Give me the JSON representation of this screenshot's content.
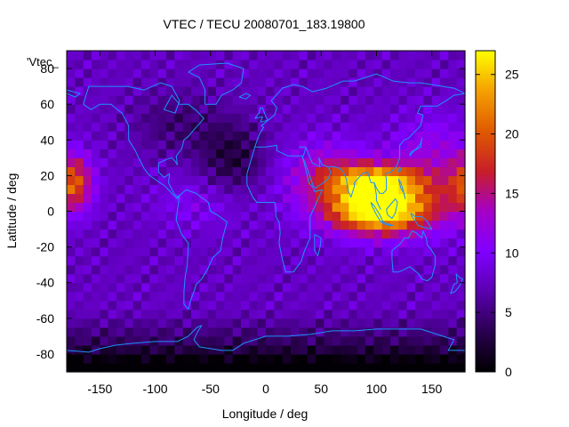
{
  "chart_data": {
    "type": "heatmap",
    "title": "VTEC / TECU 20080701_183.19800",
    "xlabel": "Longitude / deg",
    "ylabel": "Latitude / deg",
    "legend_label": "'Vtec_",
    "xlim": [
      -180,
      180
    ],
    "ylim": [
      -90,
      90
    ],
    "x_ticks": [
      -150,
      -100,
      -50,
      0,
      50,
      100,
      150
    ],
    "y_ticks": [
      -80,
      -60,
      -40,
      -20,
      0,
      20,
      40,
      60,
      80
    ],
    "colorbar": {
      "range": [
        0,
        27
      ],
      "ticks": [
        0,
        5,
        10,
        15,
        20,
        25
      ],
      "colors": [
        "#000000",
        "#2a0050",
        "#5a00b0",
        "#8000ff",
        "#a500c8",
        "#c81e28",
        "#e05a00",
        "#f5a000",
        "#ffff00"
      ]
    },
    "grid": {
      "lon_step": 7.5,
      "lat_step": 5
    },
    "background_level": 8,
    "features": [
      {
        "name": "equatorial-anomaly-asia",
        "lon": 100,
        "lat": 0,
        "peak": 26
      },
      {
        "name": "northern-crest-asia",
        "lon": 95,
        "lat": 20,
        "peak": 21
      },
      {
        "name": "western-pacific-crest",
        "lon": -170,
        "lat": 18,
        "peak": 19
      },
      {
        "name": "southern-low",
        "lon": 0,
        "lat": -85,
        "peak": 1
      }
    ],
    "overlay": "coastlines"
  }
}
